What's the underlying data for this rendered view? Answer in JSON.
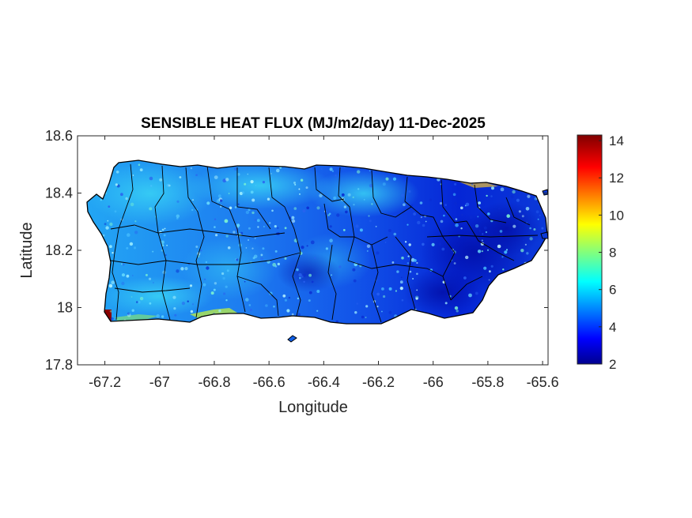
{
  "chart_data": {
    "type": "heatmap",
    "title": "SENSIBLE HEAT FLUX (MJ/m2/day) 11-Dec-2025",
    "xlabel": "Longitude",
    "ylabel": "Latitude",
    "xlim": [
      -67.3,
      -65.58
    ],
    "ylim": [
      17.8,
      18.6
    ],
    "x_ticks": [
      -67.2,
      -67,
      -66.8,
      -66.6,
      -66.4,
      -66.2,
      -66,
      -65.8,
      -65.6
    ],
    "x_tick_labels": [
      "-67.2",
      "-67",
      "-66.8",
      "-66.6",
      "-66.4",
      "-66.2",
      "-66",
      "-65.8",
      "-65.6"
    ],
    "y_ticks": [
      17.8,
      18,
      18.2,
      18.4,
      18.6
    ],
    "y_tick_labels": [
      "17.8",
      "18",
      "18.2",
      "18.4",
      "18.6"
    ],
    "colorbar": {
      "colormap": "jet",
      "clim": [
        2,
        14.3
      ],
      "ticks": [
        2,
        4,
        6,
        8,
        10,
        12,
        14
      ],
      "tick_labels": [
        "2",
        "4",
        "6",
        "8",
        "10",
        "12",
        "14"
      ]
    },
    "region": "Puerto Rico",
    "field_summary": {
      "typical_range": [
        3,
        7
      ],
      "west_and_north": "light blue to cyan, about 5-6",
      "east_and_southeast": "dark blue, about 3",
      "southwest_tip_max": "dark red, about 14"
    },
    "grid": false
  },
  "colors": {
    "axis": "#262626",
    "jet_low": "#00008f",
    "jet_mid": "#00ffff",
    "jet_high": "#800000"
  }
}
